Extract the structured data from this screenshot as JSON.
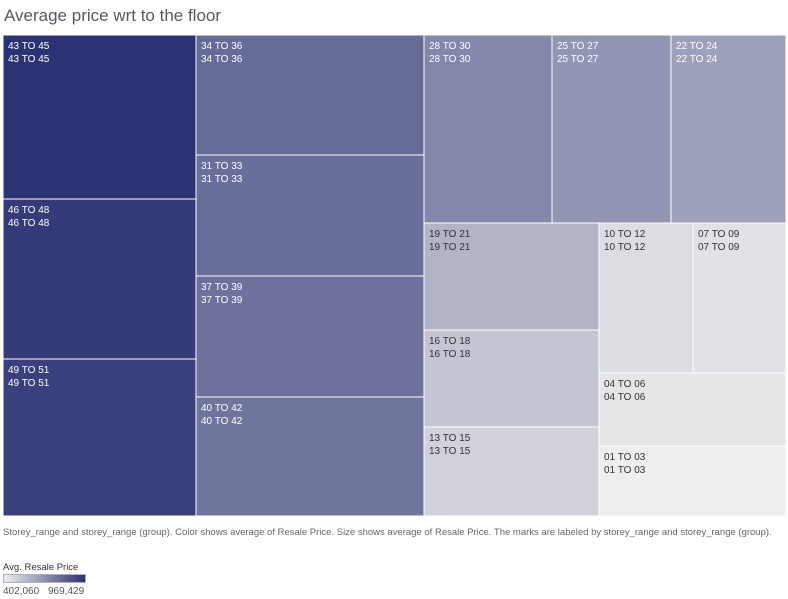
{
  "title": "Average price wrt to the floor",
  "chart_data": {
    "type": "treemap",
    "title": "Average price wrt to the floor",
    "color_scale": {
      "min_color": "#eeeeee",
      "max_color": "#2c3373"
    },
    "items": [
      {
        "label": "43 TO 45",
        "group": "43 TO 45",
        "value": 969429
      },
      {
        "label": "46 TO 48",
        "group": "46 TO 48",
        "value": 945000
      },
      {
        "label": "49 TO 51",
        "group": "49 TO 51",
        "value": 930000
      },
      {
        "label": "34 TO 36",
        "group": "34 TO 36",
        "value": 800000
      },
      {
        "label": "31 TO 33",
        "group": "31 TO 33",
        "value": 790000
      },
      {
        "label": "37 TO 39",
        "group": "37 TO 39",
        "value": 780000
      },
      {
        "label": "40 TO 42",
        "group": "40 TO 42",
        "value": 770000
      },
      {
        "label": "28 TO 30",
        "group": "28 TO 30",
        "value": 715000
      },
      {
        "label": "25 TO 27",
        "group": "25 TO 27",
        "value": 670000
      },
      {
        "label": "22 TO 24",
        "group": "22 TO 24",
        "value": 635000
      },
      {
        "label": "19 TO 21",
        "group": "19 TO 21",
        "value": 580000
      },
      {
        "label": "16 TO 18",
        "group": "16 TO 18",
        "value": 525000
      },
      {
        "label": "13 TO 15",
        "group": "13 TO 15",
        "value": 490000
      },
      {
        "label": "10 TO 12",
        "group": "10 TO 12",
        "value": 455000
      },
      {
        "label": "07 TO 09",
        "group": "07 TO 09",
        "value": 440000
      },
      {
        "label": "04 TO 06",
        "group": "04 TO 06",
        "value": 425000
      },
      {
        "label": "01 TO 03",
        "group": "01 TO 03",
        "value": 402060
      }
    ]
  },
  "caption": "Storey_range and storey_range (group).  Color shows average of Resale Price.  Size shows average of Resale Price.  The marks are labeled by storey_range and storey_range (group).",
  "legend": {
    "title": "Avg. Resale Price",
    "min_label": "402,060",
    "max_label": "969,429",
    "min_color": "#eeeeee",
    "max_color": "#2c3373"
  }
}
